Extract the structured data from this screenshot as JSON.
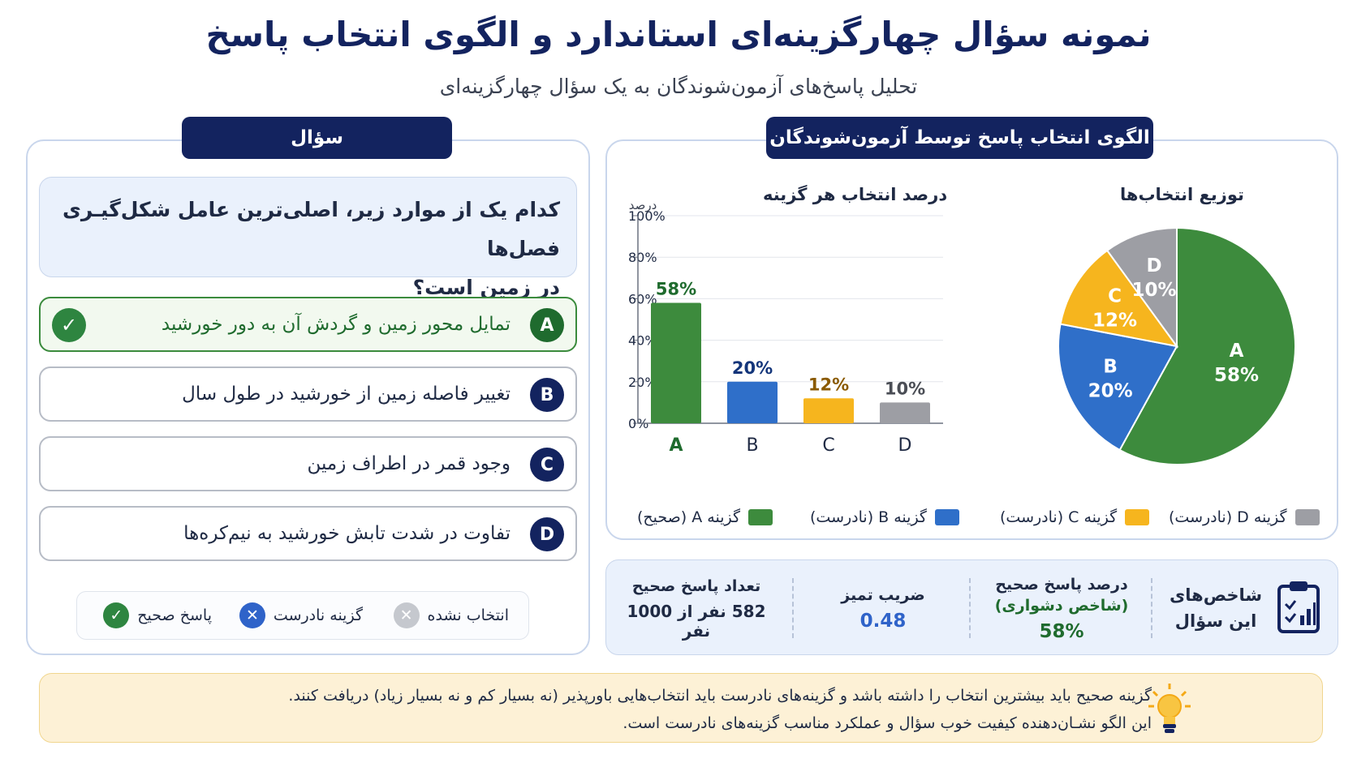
{
  "header": {
    "title": "نمونه سؤال چهارگزینه‌ای استاندارد و الگوی انتخاب پاسخ",
    "subtitle": "تحلیل پاسخ‌های آزمون‌شوندگان به یک سؤال چهارگزینه‌ای"
  },
  "question_panel": {
    "heading": "سؤال",
    "question_line1": "کدام یک از موارد زیر، اصلی‌ترین عامل شکل‌گیـری فصل‌ها",
    "question_line2": "در زمین است؟",
    "options": [
      {
        "letter": "A",
        "text": "تمایل محور زمین و گردش آن به دور خورشید",
        "correct": true
      },
      {
        "letter": "B",
        "text": "تغییر فاصله زمین از خورشید در طول سال",
        "correct": false
      },
      {
        "letter": "C",
        "text": "وجود قمر در اطراف زمین",
        "correct": false
      },
      {
        "letter": "D",
        "text": "تفاوت در شدت تابش خورشید به نیم‌کره‌ها",
        "correct": false
      }
    ],
    "legend": {
      "correct": "پاسخ صحیح",
      "wrong": "گزینه نادرست",
      "unselected": "انتخاب نشده"
    }
  },
  "pattern_panel": {
    "heading": "الگوی انتخاب پاسخ توسط آزمون‌شوندگان",
    "bar_title": "درصد انتخاب هر گزینه",
    "pie_title": "توزیع انتخاب‌ها",
    "y_unit": "درصد",
    "legend": [
      {
        "label": "گزینه A (صحیح)",
        "color": "#3d8b3d"
      },
      {
        "label": "گزینه B (نادرست)",
        "color": "#2f6fc9"
      },
      {
        "label": "گزینه C (نادرست)",
        "color": "#f6b51e"
      },
      {
        "label": "گزینه D (نادرست)",
        "color": "#9d9ea4"
      }
    ]
  },
  "chart_data": [
    {
      "type": "bar",
      "title": "درصد انتخاب هر گزینه",
      "ylabel": "درصد",
      "categories": [
        "A",
        "B",
        "C",
        "D"
      ],
      "values": [
        58,
        20,
        12,
        10
      ],
      "value_labels": [
        "58%",
        "20%",
        "12%",
        "10%"
      ],
      "colors": [
        "#3d8b3d",
        "#2f6fc9",
        "#f6b51e",
        "#9d9ea4"
      ],
      "label_colors": [
        "#1f6b2e",
        "#13357a",
        "#8a5a00",
        "#4a4d55"
      ],
      "ylim": [
        0,
        100
      ],
      "yticks": [
        "0%",
        "20%",
        "40%",
        "60%",
        "80%",
        "100%"
      ],
      "grid": true
    },
    {
      "type": "pie",
      "title": "توزیع انتخاب‌ها",
      "categories": [
        "A",
        "B",
        "C",
        "D"
      ],
      "values": [
        58,
        20,
        12,
        10
      ],
      "value_labels": [
        "58%",
        "20%",
        "12%",
        "10%"
      ],
      "colors": [
        "#3d8b3d",
        "#2f6fc9",
        "#f6b51e",
        "#9d9ea4"
      ]
    }
  ],
  "indicators": {
    "title_line1": "شاخص‌های",
    "title_line2": "این سؤال",
    "difficulty_label1": "درصد پاسخ صحیح",
    "difficulty_label2": "(شاخص دشواری)",
    "difficulty_value": "58%",
    "discrimination_label": "ضریب تمیز",
    "discrimination_value": "0.48",
    "correct_count_label": "تعداد پاسخ صحیح",
    "correct_count_value": "582 نفر از 1000 نفر"
  },
  "tip": {
    "line1": "گزینه صحیح باید بیشترین انتخاب را داشته باشد و گزینه‌های نادرست باید انتخاب‌هایی باورپذیر (نه بسیار کم و نه بسیار زیاد) دریافت کنند.",
    "line2": "این الگو نشـان‌دهنده کیفیت خوب سؤال و عملکرد مناسب گزینه‌های نادرست است."
  },
  "icons": {
    "check": "check-icon",
    "cross": "cross-icon",
    "clipboard": "clipboard-chart-icon",
    "bulb": "lightbulb-icon"
  }
}
